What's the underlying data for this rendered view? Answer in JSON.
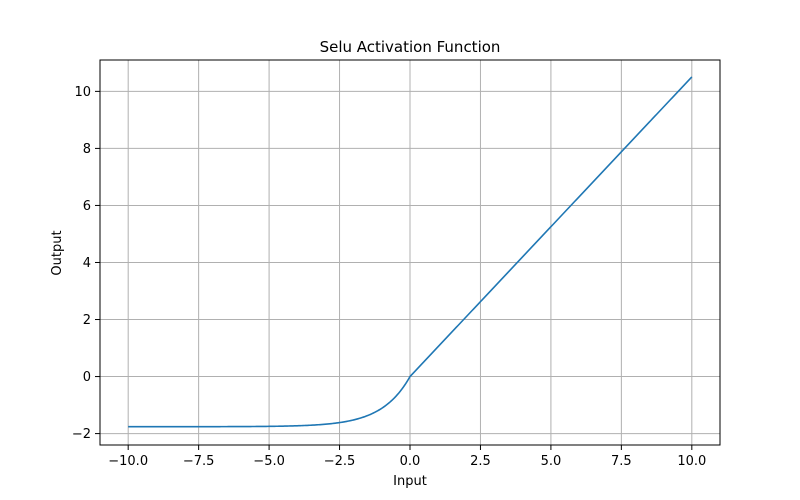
{
  "chart_data": {
    "type": "line",
    "title": "Selu Activation Function",
    "xlabel": "Input",
    "ylabel": "Output",
    "xlim": [
      -11.0,
      11.0
    ],
    "ylim": [
      -2.4,
      11.1
    ],
    "xticks": [
      -10.0,
      -7.5,
      -5.0,
      -2.5,
      0.0,
      2.5,
      5.0,
      7.5,
      10.0
    ],
    "xtick_labels": [
      "−10.0",
      "−7.5",
      "−5.0",
      "−2.5",
      "0.0",
      "2.5",
      "5.0",
      "7.5",
      "10.0"
    ],
    "yticks": [
      -2,
      0,
      2,
      4,
      6,
      8,
      10
    ],
    "ytick_labels": [
      "−2",
      "0",
      "2",
      "4",
      "6",
      "8",
      "10"
    ],
    "grid": true,
    "series": [
      {
        "line_color": "#1f77b4",
        "function": "selu",
        "alpha": 1.6732632423543772,
        "scale": 1.0507009873554805,
        "x_range": [
          -10,
          10
        ],
        "x": [
          -10,
          -8,
          -6,
          -5,
          -4,
          -3,
          -2.5,
          -2,
          -1.5,
          -1,
          -0.5,
          0,
          2.5,
          5,
          7.5,
          10
        ],
        "y": [
          -1.758,
          -1.758,
          -1.754,
          -1.746,
          -1.726,
          -1.67,
          -1.615,
          -1.52,
          -1.367,
          -1.111,
          -0.692,
          0,
          2.627,
          5.254,
          7.88,
          10.507
        ]
      }
    ]
  }
}
